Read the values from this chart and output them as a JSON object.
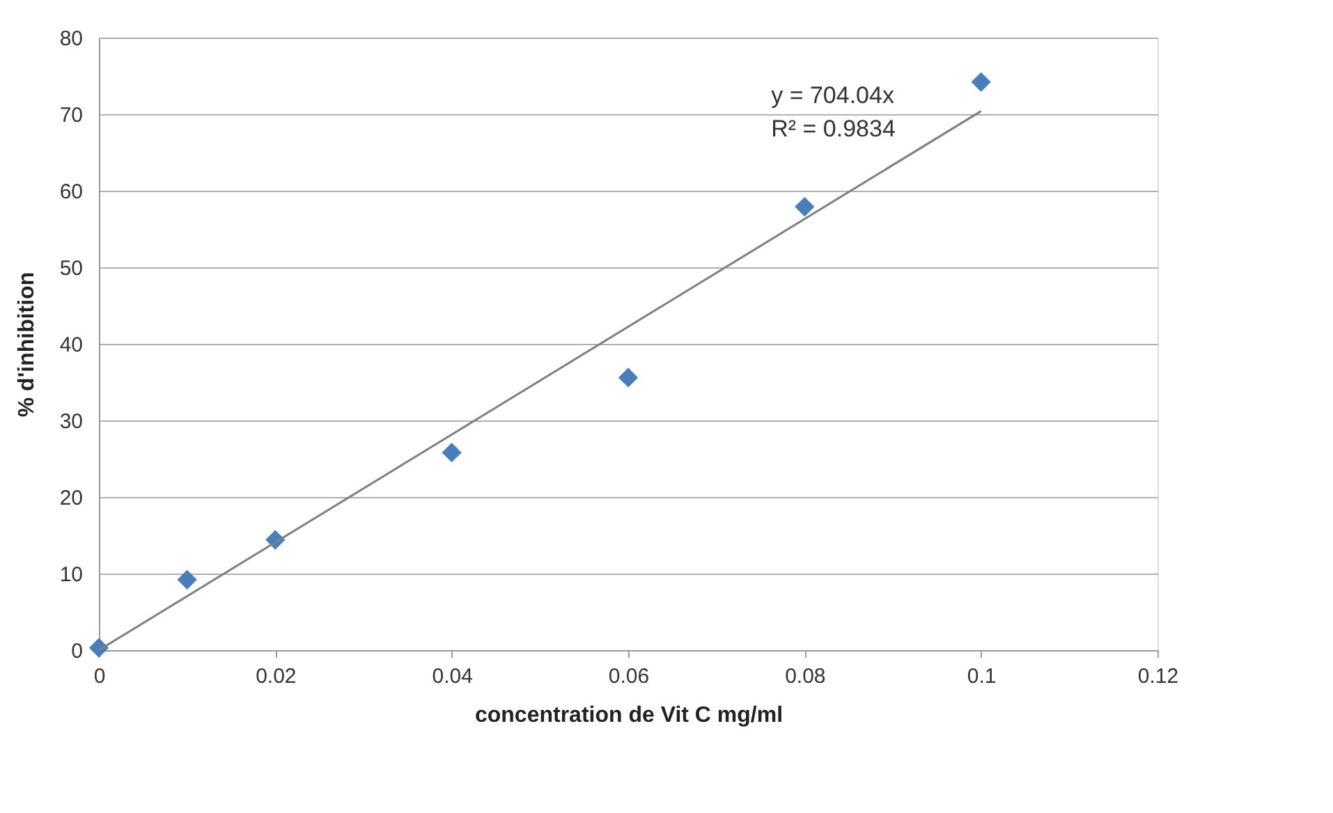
{
  "chart_data": {
    "type": "scatter",
    "xlabel": "concentration de Vit C mg/ml",
    "ylabel": "% d'inhibition",
    "x": [
      0,
      0.01,
      0.02,
      0.04,
      0.06,
      0.08,
      0.1
    ],
    "series": [
      {
        "color": "#4a7ebb",
        "values": [
          0.3,
          9.2,
          14.4,
          25.8,
          35.6,
          57.9,
          74.2
        ],
        "marker": "diamond"
      },
      {
        "type": "line",
        "color": "#7f7f7f",
        "x": [
          0,
          0.1
        ],
        "values": [
          0,
          70.4
        ],
        "marker": "none",
        "line_style": "solid"
      }
    ],
    "xlim": [
      0,
      0.12
    ],
    "xticks": [
      0,
      0.02,
      0.04,
      0.06,
      0.08,
      0.1,
      0.12
    ],
    "ylim": [
      0,
      80
    ],
    "yticks": [
      0,
      10,
      20,
      30,
      40,
      50,
      60,
      70,
      80
    ],
    "grid": "y",
    "annotations": [
      "y = 704.04x",
      "R² = 0.9834"
    ]
  }
}
